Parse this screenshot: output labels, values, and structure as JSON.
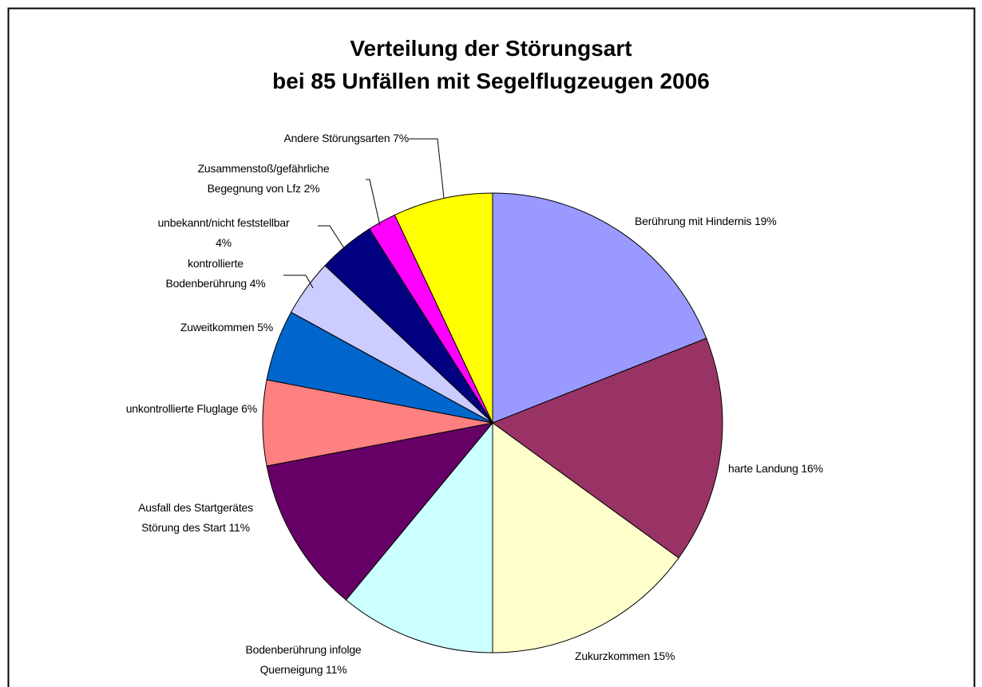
{
  "chart_data": {
    "type": "pie",
    "title": "Verteilung der Störungsart\nbei 85 Unfällen mit Segelflugzeugen 2006",
    "categories": [
      "Berührung mit Hindernis",
      "harte Landung",
      "Zukurzkommen",
      "Bodenberührung infolge\nQuerneigung",
      "Ausfall des Startgerätes\nStörung des Start",
      "unkontrollierte Fluglage",
      "Zuweitkommen",
      "kontrollierte\nBodenberührung",
      "unbekannt/nicht feststellbar",
      "Zusammenstoß/gefährliche\nBegegnung von Lfz",
      "Andere Störungsarten"
    ],
    "values": [
      19,
      16,
      15,
      11,
      11,
      6,
      5,
      4,
      4,
      2,
      7
    ],
    "value_labels": [
      "19%",
      "16%",
      "15%",
      "11%",
      "11%",
      "6%",
      "5%",
      "4%",
      "4%",
      "2%",
      "7%"
    ],
    "colors": [
      "#9999ff",
      "#993366",
      "#ffffcc",
      "#ccffff",
      "#660066",
      "#ff8080",
      "#0066cc",
      "#ccccff",
      "#000080",
      "#ff00ff",
      "#ffff00"
    ]
  }
}
